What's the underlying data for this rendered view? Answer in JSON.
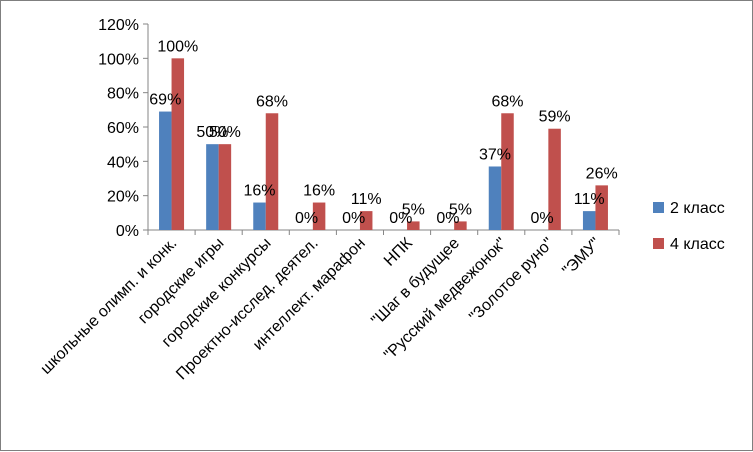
{
  "chart_data": {
    "type": "bar",
    "categories": [
      "школьные олимп. и конк.",
      "городские игры",
      "городские конкурсы",
      "Проектно-исслед. деятел.",
      "интеллект. марафон",
      "НПК",
      "\"Шаг в будущее",
      "\"Русский медвежонок\"",
      "\"Золотое руно\"",
      "\"ЭМУ\""
    ],
    "series": [
      {
        "name": "2 класс",
        "color": "#4f81bd",
        "values": [
          69,
          50,
          16,
          0,
          0,
          0,
          0,
          37,
          0,
          11
        ],
        "labels": [
          "69%",
          "50%",
          "16%",
          "0%",
          "0%",
          "0%",
          "0%",
          "37%",
          "0%",
          "11%"
        ]
      },
      {
        "name": "4 класс",
        "color": "#c0504d",
        "values": [
          100,
          50,
          68,
          16,
          11,
          5,
          5,
          68,
          59,
          26
        ],
        "labels": [
          "100%",
          "50%",
          "68%",
          "16%",
          "11%",
          "5%",
          "5%",
          "68%",
          "59%",
          "26%"
        ]
      }
    ],
    "ylim": [
      0,
      120
    ],
    "yticks": [
      "0%",
      "20%",
      "40%",
      "60%",
      "80%",
      "100%",
      "120%"
    ],
    "grid": false,
    "legend_position": "right"
  }
}
